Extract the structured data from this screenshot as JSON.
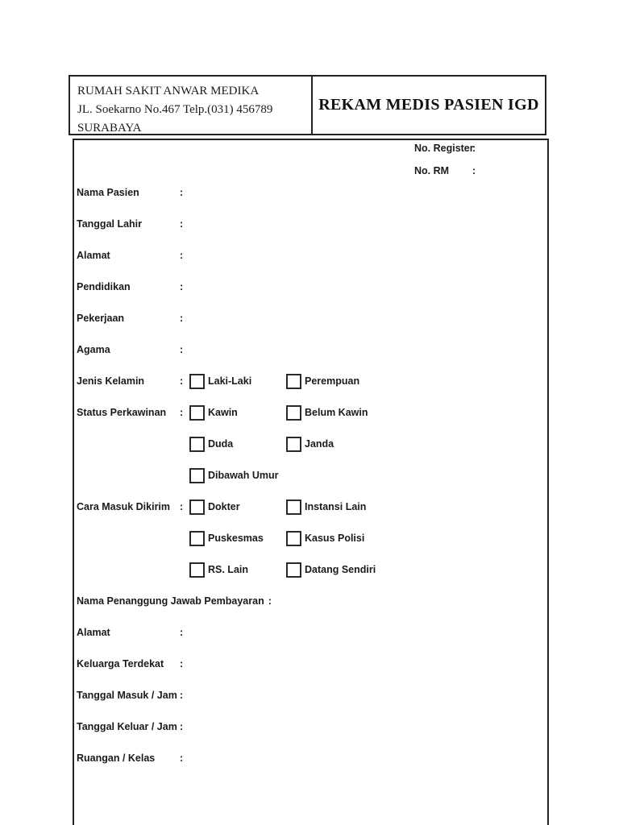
{
  "header": {
    "hospital_name": "RUMAH SAKIT ANWAR MEDIKA",
    "hospital_address": "JL. Soekarno No.467 Telp.(031) 456789",
    "hospital_city": "SURABAYA",
    "form_title": "REKAM MEDIS PASIEN IGD"
  },
  "register": {
    "no_register_label": "No. Register",
    "no_rm_label": "No. RM",
    "colon": ":"
  },
  "colon": ":",
  "fields": {
    "nama_pasien": "Nama Pasien",
    "tanggal_lahir": "Tanggal Lahir",
    "alamat": "Alamat",
    "pendidikan": "Pendidikan",
    "pekerjaan": "Pekerjaan",
    "agama": "Agama",
    "jenis_kelamin": "Jenis Kelamin",
    "status_perkawinan": "Status Perkawinan",
    "cara_masuk_dikirim": "Cara Masuk Dikirim",
    "penanggung_jawab": "Nama Penanggung Jawab Pembayaran",
    "alamat_penanggung": "Alamat",
    "keluarga_terdekat": "Keluarga Terdekat",
    "tanggal_masuk_jam": "Tanggal Masuk / Jam",
    "tanggal_keluar_jam": "Tanggal Keluar / Jam",
    "ruangan_kelas": "Ruangan / Kelas"
  },
  "options": {
    "jenis_kelamin": [
      "Laki-Laki",
      "Perempuan"
    ],
    "status_perkawinan": [
      "Kawin",
      "Belum Kawin",
      "Duda",
      "Janda",
      "Dibawah Umur"
    ],
    "cara_masuk": [
      "Dokter",
      "Instansi Lain",
      "Puskesmas",
      "Kasus Polisi",
      "RS. Lain",
      "Datang Sendiri"
    ]
  },
  "colors": {
    "ink": "#1a1a1a",
    "border": "#222222",
    "page_bg": "#ffffff"
  }
}
